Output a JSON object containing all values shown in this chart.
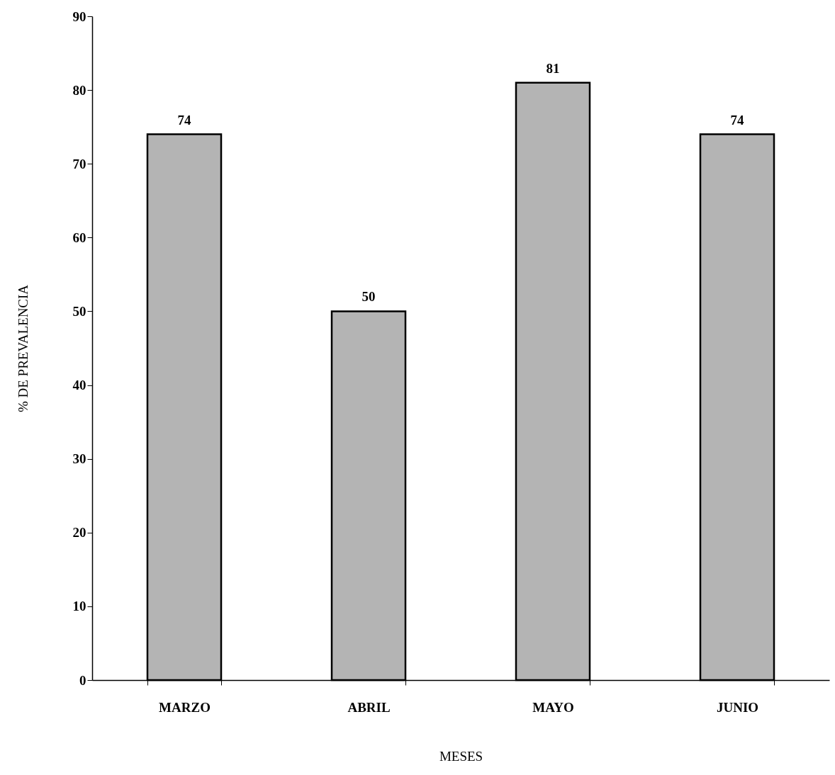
{
  "chart_data": {
    "type": "bar",
    "xlabel": "MESES",
    "ylabel": "% DE PREVALENCIA",
    "categories": [
      "MARZO",
      "ABRIL",
      "MAYO",
      "JUNIO"
    ],
    "values": [
      74,
      50,
      81,
      74
    ],
    "color": "#b4b4b4",
    "ylim": [
      0,
      90
    ],
    "yticks": [
      0,
      10,
      20,
      30,
      40,
      50,
      60,
      70,
      80,
      90
    ],
    "data_labels": true,
    "grid": false
  }
}
